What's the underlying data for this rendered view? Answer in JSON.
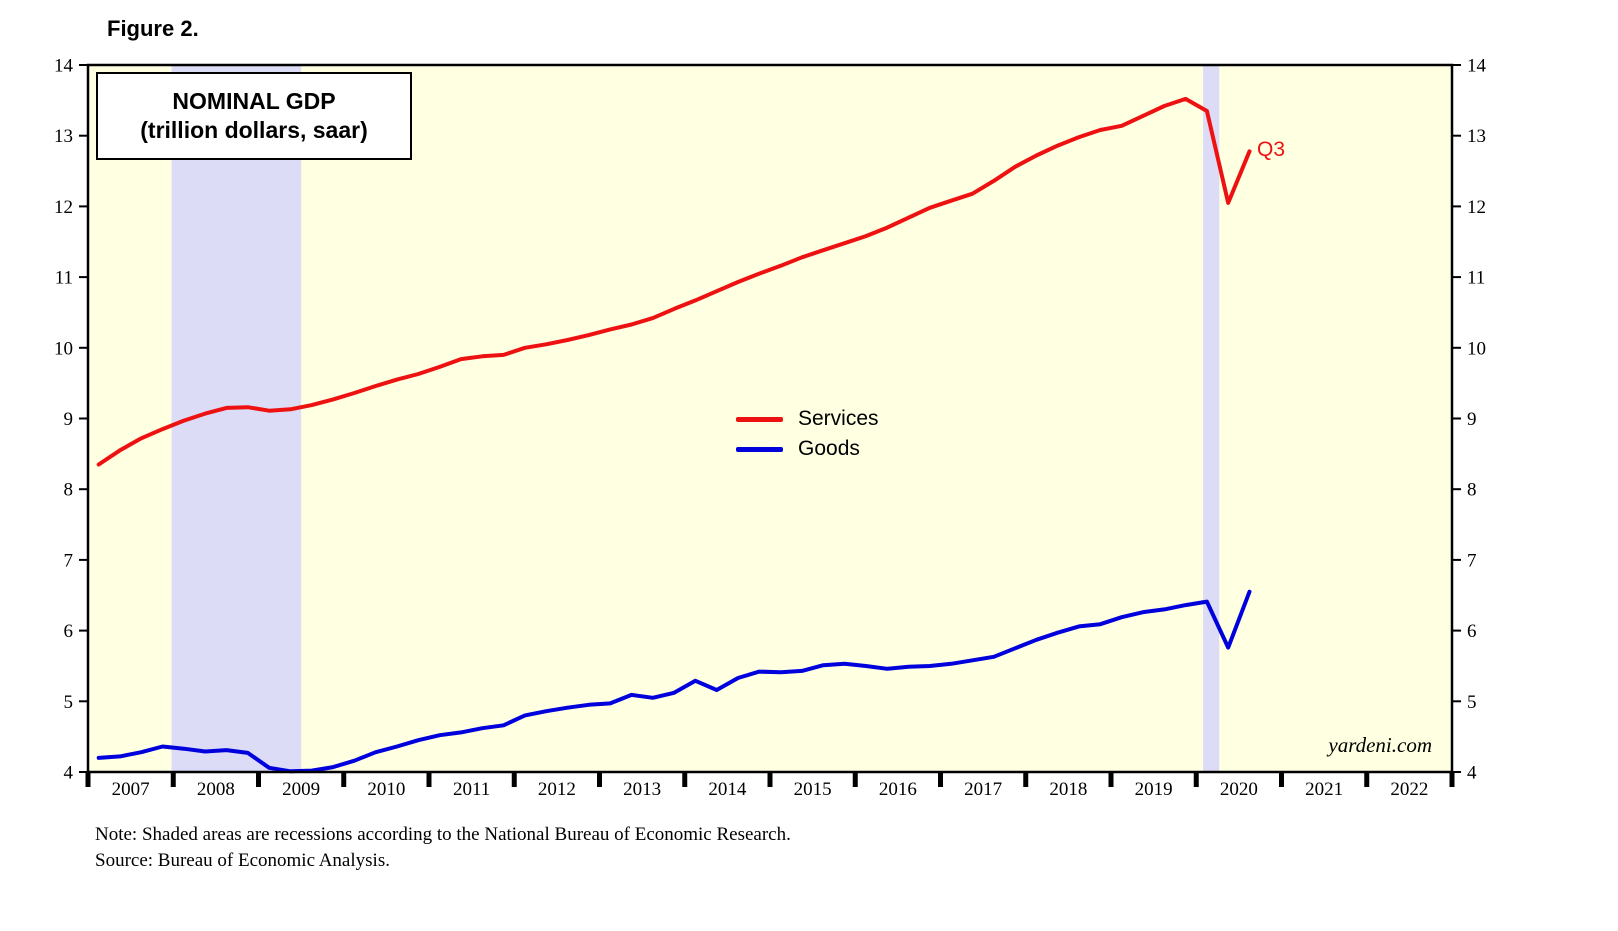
{
  "figure_label": "Figure 2.",
  "chart_title_line1": "NOMINAL GDP",
  "chart_title_line2": "(trillion dollars, saar)",
  "annotation_q3": "Q3",
  "watermark": "yardeni.com",
  "notes": {
    "line1": "Note: Shaded areas are recessions according to the National Bureau of Economic Research.",
    "line2": "Source: Bureau of Economic Analysis."
  },
  "legend": [
    {
      "label": "Services",
      "color": "#ee1111"
    },
    {
      "label": "Goods",
      "color": "#0000dd"
    }
  ],
  "chart_data": {
    "type": "line",
    "title": "NOMINAL GDP (trillion dollars, saar)",
    "ylabel": "trillion dollars",
    "xlim": [
      2007,
      2023
    ],
    "ylim": [
      4,
      14
    ],
    "y_ticks": [
      4,
      5,
      6,
      7,
      8,
      9,
      10,
      11,
      12,
      13,
      14
    ],
    "x_year_labels": [
      "2007",
      "2008",
      "2009",
      "2010",
      "2011",
      "2012",
      "2013",
      "2014",
      "2015",
      "2016",
      "2017",
      "2018",
      "2019",
      "2020",
      "2021",
      "2022"
    ],
    "x_start": 2007.125,
    "x_step": 0.25,
    "plot_bg": "#ffffe2",
    "band_color": "#dcdcf7",
    "recession_bands": [
      {
        "start": 2007.98,
        "end": 2009.5
      },
      {
        "start": 2020.08,
        "end": 2020.27
      }
    ],
    "series": [
      {
        "name": "Services",
        "color": "#ee1111",
        "values": [
          8.35,
          8.55,
          8.72,
          8.85,
          8.97,
          9.07,
          9.15,
          9.16,
          9.11,
          9.13,
          9.19,
          9.27,
          9.36,
          9.46,
          9.55,
          9.63,
          9.73,
          9.84,
          9.88,
          9.9,
          10.0,
          10.05,
          10.11,
          10.18,
          10.26,
          10.33,
          10.42,
          10.55,
          10.67,
          10.8,
          10.93,
          11.05,
          11.16,
          11.28,
          11.38,
          11.48,
          11.58,
          11.7,
          11.84,
          11.98,
          12.08,
          12.18,
          12.36,
          12.56,
          12.72,
          12.86,
          12.98,
          13.08,
          13.14,
          13.28,
          13.42,
          13.52,
          13.35,
          12.05,
          12.78
        ]
      },
      {
        "name": "Goods",
        "color": "#0000dd",
        "values": [
          4.2,
          4.22,
          4.28,
          4.36,
          4.33,
          4.29,
          4.31,
          4.27,
          4.06,
          4.01,
          4.02,
          4.07,
          4.16,
          4.28,
          4.36,
          4.45,
          4.52,
          4.56,
          4.62,
          4.66,
          4.8,
          4.86,
          4.91,
          4.95,
          4.97,
          5.09,
          5.05,
          5.12,
          5.29,
          5.16,
          5.33,
          5.42,
          5.41,
          5.43,
          5.51,
          5.53,
          5.5,
          5.46,
          5.49,
          5.5,
          5.53,
          5.58,
          5.63,
          5.75,
          5.87,
          5.97,
          6.06,
          6.09,
          6.19,
          6.26,
          6.3,
          6.36,
          6.41,
          5.76,
          6.55
        ]
      }
    ]
  }
}
